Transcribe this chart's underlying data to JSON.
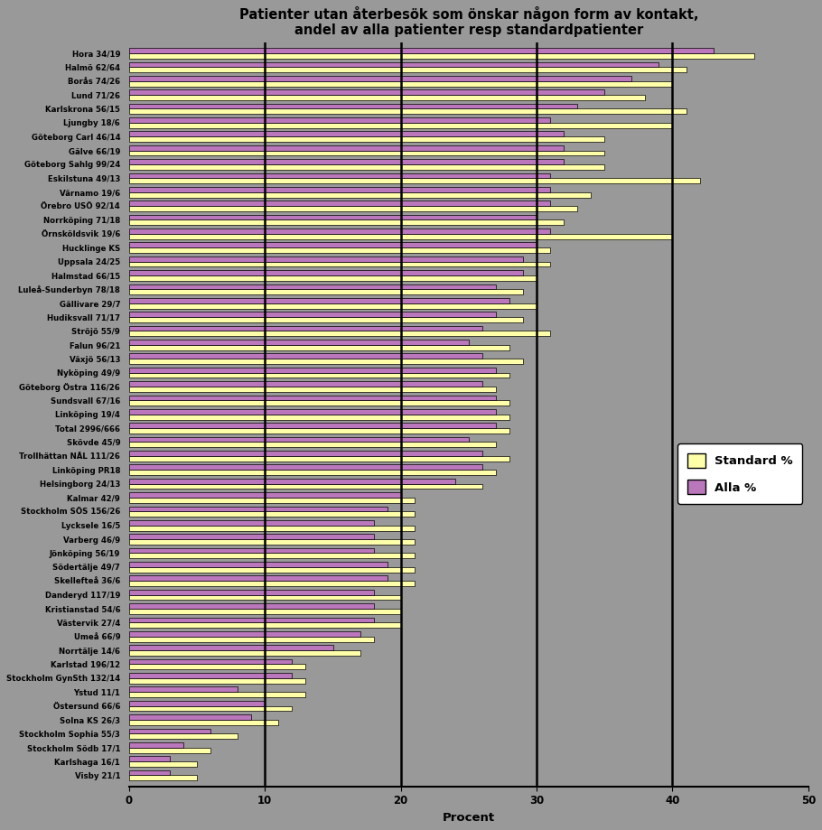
{
  "title": "Patienter utan återbesök som önskar någon form av kontakt,\nandel av alla patienter resp standardpatienter",
  "xlabel": "Procent",
  "categories": [
    "Hora 34/19",
    "Halmö 62/64",
    "Borås 74/26",
    "Lund 71/26",
    "Karlskrona 56/15",
    "Ljungby 18/6",
    "Göteborg Carl 46/14",
    "Gälve 66/19",
    "Göteborg Sahlg 99/24",
    "Eskilstuna 49/13",
    "Värnamo 19/6",
    "Örebro USÖ 92/14",
    "Norrköping 71/18",
    "Örnsköldsvik 19/6",
    "Hucklinge KS",
    "Uppsala 24/25",
    "Halmstad 66/15",
    "Luleå-Sunderbyn 78/18",
    "Gällivare 29/7",
    "Hudiksvall 71/17",
    "Ströjö 55/9",
    "Falun 96/21",
    "Växjö 56/13",
    "Nyköping 49/9",
    "Göteborg Östra 116/26",
    "Sundsvall 67/16",
    "Linköping 19/4",
    "Total 2996/666",
    "Skövde 45/9",
    "Trollhättan NÄL 111/26",
    "Linköping PR18",
    "Helsingborg 24/13",
    "Kalmar 42/9",
    "Stockholm SÖS 156/26",
    "Lycksele 16/5",
    "Varberg 46/9",
    "Jönköping 56/19",
    "Södertälje 49/7",
    "Skellefteå 36/6",
    "Danderyd 117/19",
    "Kristianstad 54/6",
    "Västervik 27/4",
    "Umeå 66/9",
    "Norrtälje 14/6",
    "Karlstad 196/12",
    "Stockholm GynSth 132/14",
    "Ystud 11/1",
    "Östersund 66/6",
    "Solna KS 26/3",
    "Stockholm Sophia 55/3",
    "Stockholm Södb 17/1",
    "Karlshaga 16/1",
    "Visby 21/1"
  ],
  "standard_pct": [
    46,
    41,
    40,
    38,
    41,
    40,
    35,
    35,
    35,
    42,
    34,
    33,
    32,
    40,
    31,
    31,
    30,
    29,
    30,
    29,
    31,
    28,
    29,
    28,
    27,
    28,
    28,
    28,
    27,
    28,
    27,
    26,
    21,
    21,
    21,
    21,
    21,
    21,
    21,
    20,
    20,
    20,
    18,
    17,
    13,
    13,
    13,
    12,
    11,
    8,
    6,
    5,
    5
  ],
  "alla_pct": [
    43,
    39,
    37,
    35,
    33,
    31,
    32,
    32,
    32,
    31,
    31,
    31,
    30,
    31,
    30,
    29,
    29,
    27,
    28,
    27,
    26,
    25,
    26,
    27,
    26,
    27,
    27,
    27,
    25,
    26,
    26,
    24,
    20,
    19,
    18,
    18,
    18,
    19,
    19,
    18,
    18,
    18,
    17,
    15,
    12,
    12,
    8,
    10,
    9,
    6,
    4,
    3,
    3
  ],
  "standard_color": "#FFFFAA",
  "alla_color": "#BB77BB",
  "bg_color": "#999999",
  "xlim": [
    0,
    50
  ],
  "xticks": [
    0,
    10,
    20,
    30,
    40,
    50
  ],
  "vlines": [
    10,
    20,
    30,
    40
  ],
  "legend_labels": [
    "Standard %",
    "Alla %"
  ]
}
